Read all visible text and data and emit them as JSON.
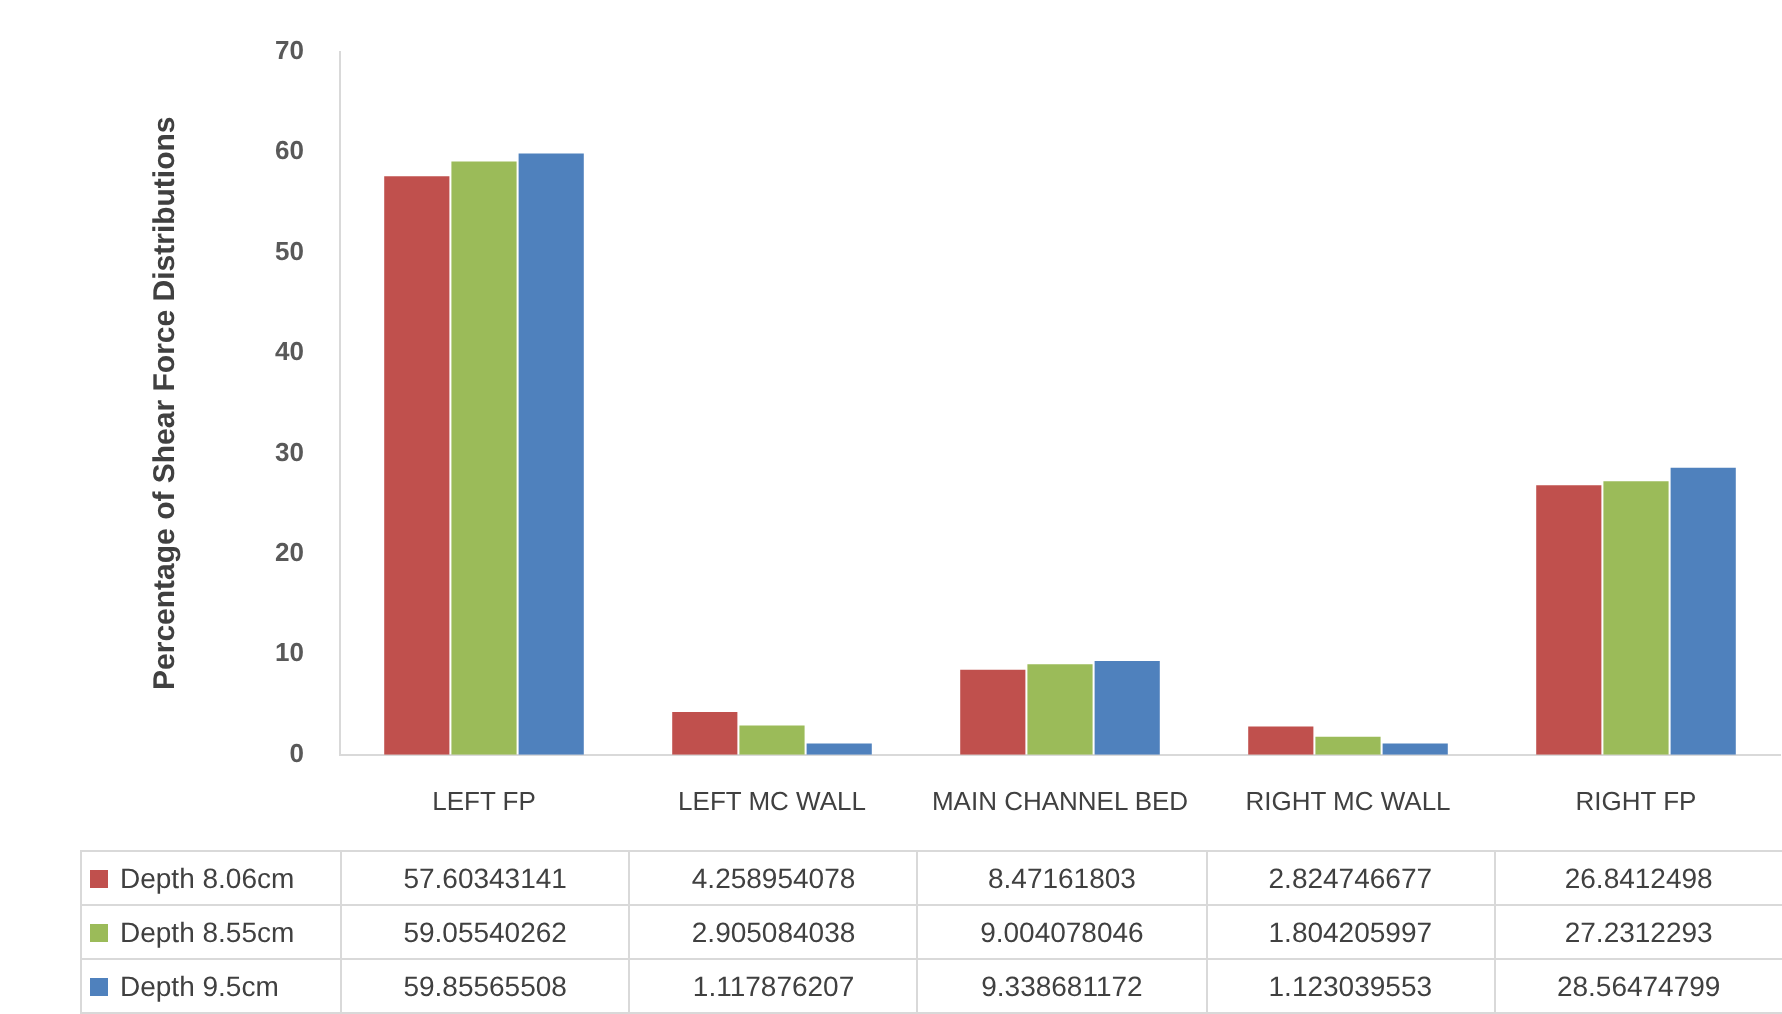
{
  "chart_data": {
    "type": "bar",
    "ylabel": "Percentage of Shear Force Distributions",
    "categories": [
      "LEFT FP",
      "LEFT MC WALL",
      "MAIN CHANNEL BED",
      "RIGHT MC WALL",
      "RIGHT FP"
    ],
    "series": [
      {
        "name": "Depth 8.06cm",
        "color": "#c0504d",
        "values": [
          57.60343141,
          4.258954078,
          8.47161803,
          2.824746677,
          26.8412498
        ]
      },
      {
        "name": "Depth 8.55cm",
        "color": "#9bbb59",
        "values": [
          59.05540262,
          2.905084038,
          9.004078046,
          1.804205997,
          27.2312293
        ]
      },
      {
        "name": "Depth 9.5cm",
        "color": "#4f81bd",
        "values": [
          59.85565508,
          1.117876207,
          9.338681172,
          1.123039553,
          28.56474799
        ]
      }
    ],
    "ylim": [
      0,
      70
    ],
    "yticks": [
      0,
      10,
      20,
      30,
      40,
      50,
      60,
      70
    ],
    "grid": false,
    "legend": "bottom",
    "data_labels": true
  }
}
